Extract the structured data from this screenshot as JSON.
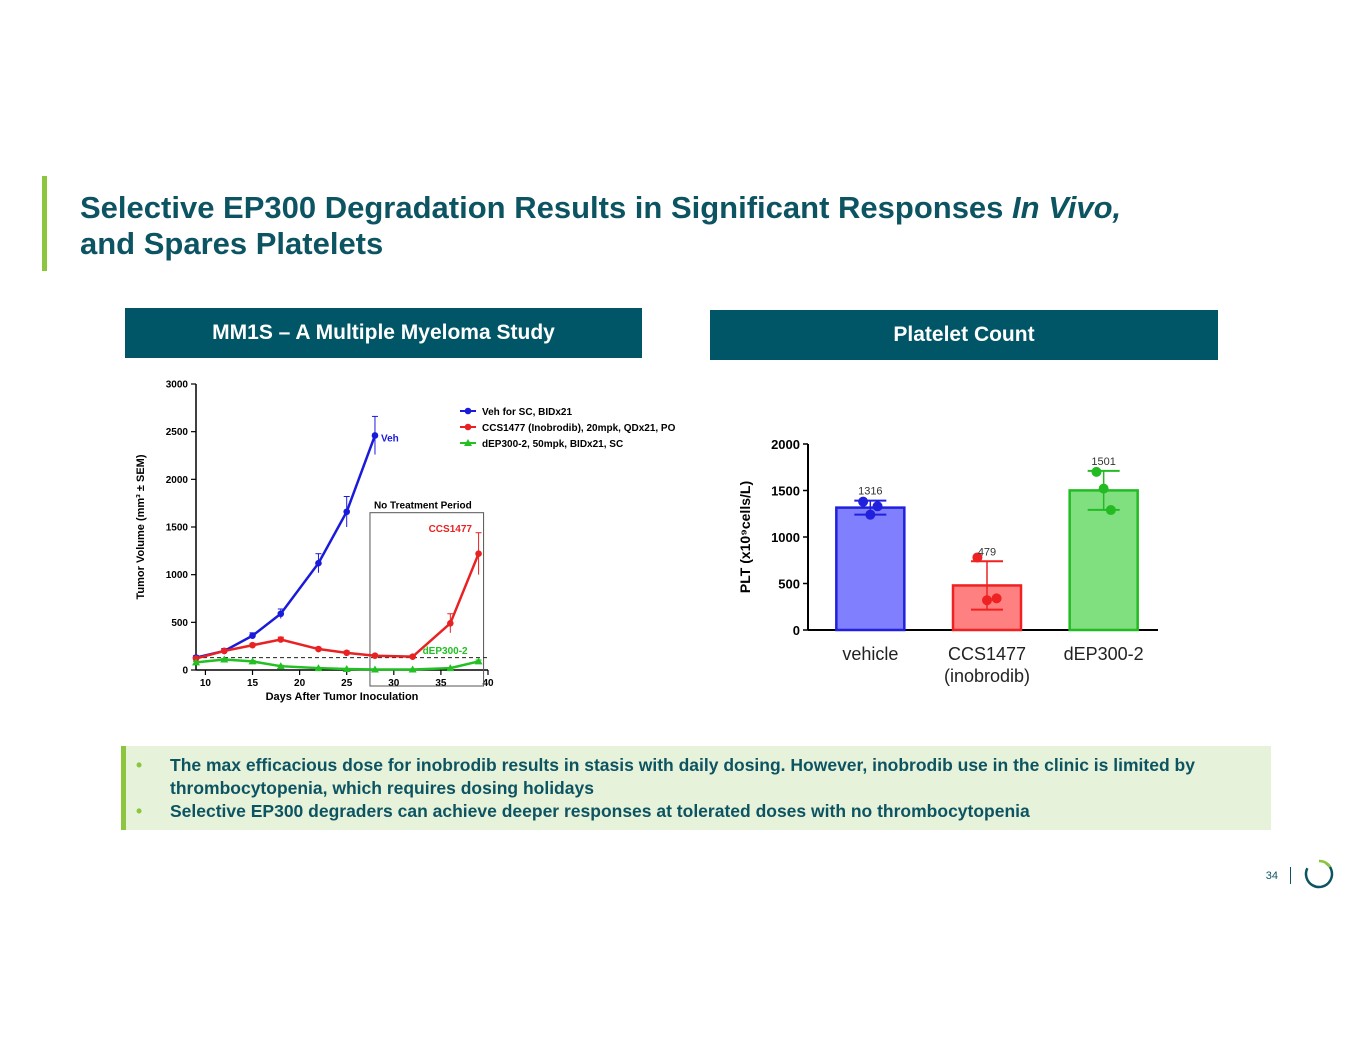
{
  "slide": {
    "title_line1": "Selective EP300 Degradation Results in Significant Responses ",
    "title_italic": "In Vivo,",
    "title_line2": "and Spares Platelets",
    "left_header": "MM1S – A Multiple Myeloma Study",
    "right_header": "Platelet Count",
    "bullets": [
      "The max efficacious dose for inobrodib results in stasis with daily dosing. However, inobrodib use in the clinic is limited by thrombocytopenia, which requires dosing holidays",
      "Selective EP300 degraders can achieve deeper responses at tolerated doses with no thrombocytopenia"
    ],
    "bullet_glyph": "•",
    "page_number": "34",
    "colors": {
      "title": "#0d5463",
      "header_bg": "#005566",
      "accent": "#8cc63f",
      "note_bg": "#e6f2d9"
    }
  },
  "chart_data": [
    {
      "type": "line",
      "title": "",
      "xlabel": "Days After Tumor Inoculation",
      "ylabel": "Tumor Volume (mm³ ± SEM)",
      "xlim": [
        9,
        40
      ],
      "ylim": [
        0,
        3000
      ],
      "xticks": [
        10,
        15,
        20,
        25,
        30,
        35,
        40
      ],
      "yticks": [
        0,
        500,
        1000,
        1500,
        2000,
        2500,
        3000
      ],
      "legend": "top-right",
      "box_label": "No Treatment Period",
      "box_range": [
        28,
        39
      ],
      "dashed_baseline": 130,
      "series": [
        {
          "name": "Veh for SC, BIDx21",
          "label": "Veh",
          "color": "#1a1adb",
          "marker": "circle",
          "x": [
            9,
            12,
            15,
            18,
            22,
            25,
            28
          ],
          "y": [
            130,
            200,
            360,
            590,
            1120,
            1660,
            2460
          ],
          "err": [
            20,
            25,
            30,
            50,
            100,
            160,
            200
          ]
        },
        {
          "name": "CCS1477 (Inobrodib), 20mpk, QDx21, PO",
          "label": "CCS1477",
          "color": "#e82222",
          "marker": "circle",
          "x": [
            9,
            12,
            15,
            18,
            22,
            25,
            28,
            32,
            36,
            39
          ],
          "y": [
            120,
            200,
            260,
            320,
            220,
            180,
            150,
            140,
            490,
            1220
          ],
          "err": [
            15,
            20,
            20,
            25,
            20,
            20,
            15,
            15,
            100,
            220
          ]
        },
        {
          "name": "dEP300-2, 50mpk, BIDx21, SC",
          "label": "dEP300-2",
          "color": "#22c022",
          "marker": "triangle",
          "x": [
            9,
            12,
            15,
            18,
            22,
            25,
            28,
            32,
            36,
            39
          ],
          "y": [
            80,
            110,
            90,
            40,
            20,
            10,
            5,
            5,
            20,
            90
          ],
          "err": [
            10,
            10,
            10,
            10,
            5,
            5,
            5,
            5,
            5,
            15
          ]
        }
      ]
    },
    {
      "type": "bar",
      "title": "",
      "xlabel": "",
      "ylabel": "PLT (x10⁹cells/L)",
      "ylim": [
        0,
        2000
      ],
      "yticks": [
        0,
        500,
        1000,
        1500,
        2000
      ],
      "categories": [
        "vehicle",
        "CCS1477",
        "dEP300-2"
      ],
      "category_sublabels": [
        "",
        "(inobrodib)",
        ""
      ],
      "values": [
        1316,
        479,
        1501
      ],
      "value_labels": [
        "1316",
        "479",
        "1501"
      ],
      "errors": [
        75,
        260,
        210
      ],
      "points": [
        [
          1380,
          1240,
          1330
        ],
        [
          780,
          320,
          340
        ],
        [
          1700,
          1520,
          1290
        ]
      ],
      "fills": [
        "#8080ff",
        "#ff8080",
        "#80e080"
      ],
      "strokes": [
        "#2020dd",
        "#ee2222",
        "#22bb22"
      ]
    }
  ]
}
